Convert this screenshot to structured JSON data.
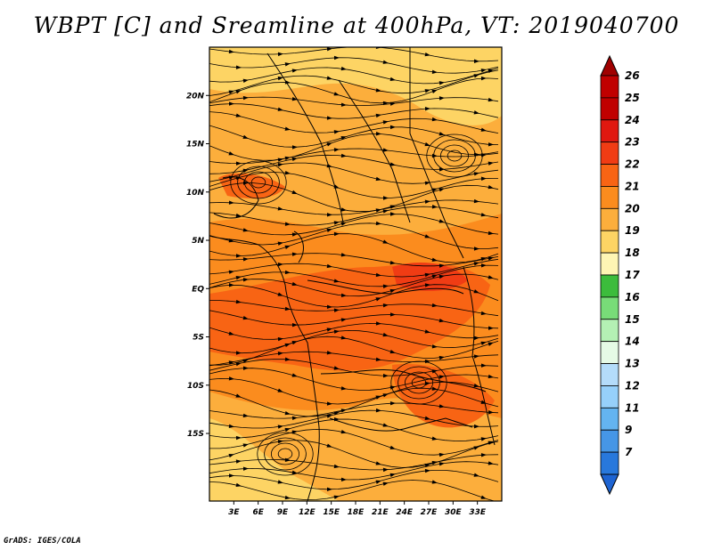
{
  "title": "WBPT [C] and Sreamline at 400hPa, VT: 2019040700",
  "credit": "GrADS: IGES/COLA",
  "map": {
    "lon_range": [
      0,
      36
    ],
    "lat_range": [
      -22,
      25
    ],
    "lat_ticks": [
      {
        "value": 20,
        "label": "20N"
      },
      {
        "value": 15,
        "label": "15N"
      },
      {
        "value": 10,
        "label": "10N"
      },
      {
        "value": 5,
        "label": "5N"
      },
      {
        "value": 0,
        "label": "EQ"
      },
      {
        "value": -5,
        "label": "5S"
      },
      {
        "value": -10,
        "label": "10S"
      },
      {
        "value": -15,
        "label": "15S"
      }
    ],
    "lon_ticks": [
      {
        "value": 3,
        "label": "3E"
      },
      {
        "value": 6,
        "label": "6E"
      },
      {
        "value": 9,
        "label": "9E"
      },
      {
        "value": 12,
        "label": "12E"
      },
      {
        "value": 15,
        "label": "15E"
      },
      {
        "value": 18,
        "label": "18E"
      },
      {
        "value": 21,
        "label": "21E"
      },
      {
        "value": 24,
        "label": "24E"
      },
      {
        "value": 27,
        "label": "27E"
      },
      {
        "value": 30,
        "label": "30E"
      },
      {
        "value": 33,
        "label": "33E"
      }
    ]
  },
  "colorbar": {
    "levels": [
      {
        "label": "26",
        "color": "#c00000"
      },
      {
        "label": "25",
        "color": "#c00000"
      },
      {
        "label": "24",
        "color": "#e01810"
      },
      {
        "label": "23",
        "color": "#f03c14"
      },
      {
        "label": "22",
        "color": "#f86414"
      },
      {
        "label": "21",
        "color": "#fb8c1e"
      },
      {
        "label": "20",
        "color": "#fcae3c"
      },
      {
        "label": "19",
        "color": "#fdd464"
      },
      {
        "label": "18",
        "color": "#fef5b4"
      },
      {
        "label": "17",
        "color": "#3cbc3c"
      },
      {
        "label": "16",
        "color": "#78dc78"
      },
      {
        "label": "15",
        "color": "#b4f0b4"
      },
      {
        "label": "14",
        "color": "#e6fae6"
      },
      {
        "label": "13",
        "color": "#b4dcfa"
      },
      {
        "label": "12",
        "color": "#96d0fa"
      },
      {
        "label": "11",
        "color": "#64b4f0"
      },
      {
        "label": "9",
        "color": "#4696e6"
      },
      {
        "label": "7",
        "color": "#2878dc"
      }
    ],
    "over_color": "#a00000",
    "under_color": "#1e64d2"
  }
}
